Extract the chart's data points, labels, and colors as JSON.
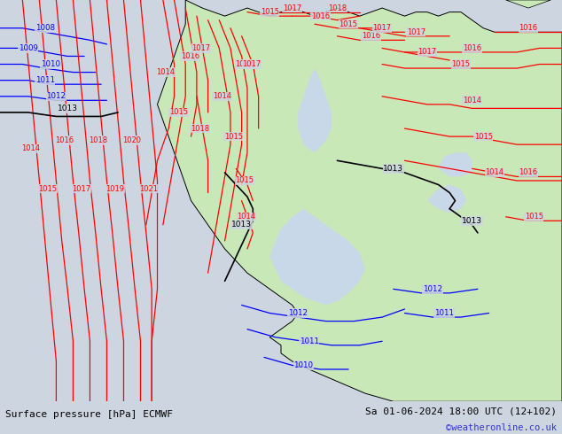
{
  "title_left": "Surface pressure [hPa] ECMWF",
  "title_right": "Sa 01-06-2024 18:00 UTC (12+102)",
  "credit": "©weatheronline.co.uk",
  "bg_color": "#cdd5e0",
  "land_color": "#c8e8b8",
  "sea_color": "#cdd5e0",
  "water_color": "#c8d8e8",
  "fig_width": 6.34,
  "fig_height": 4.9,
  "dpi": 100,
  "bottom_bar_color": "#ffffff",
  "footer_text_color": "#000000",
  "credit_color": "#3333cc"
}
